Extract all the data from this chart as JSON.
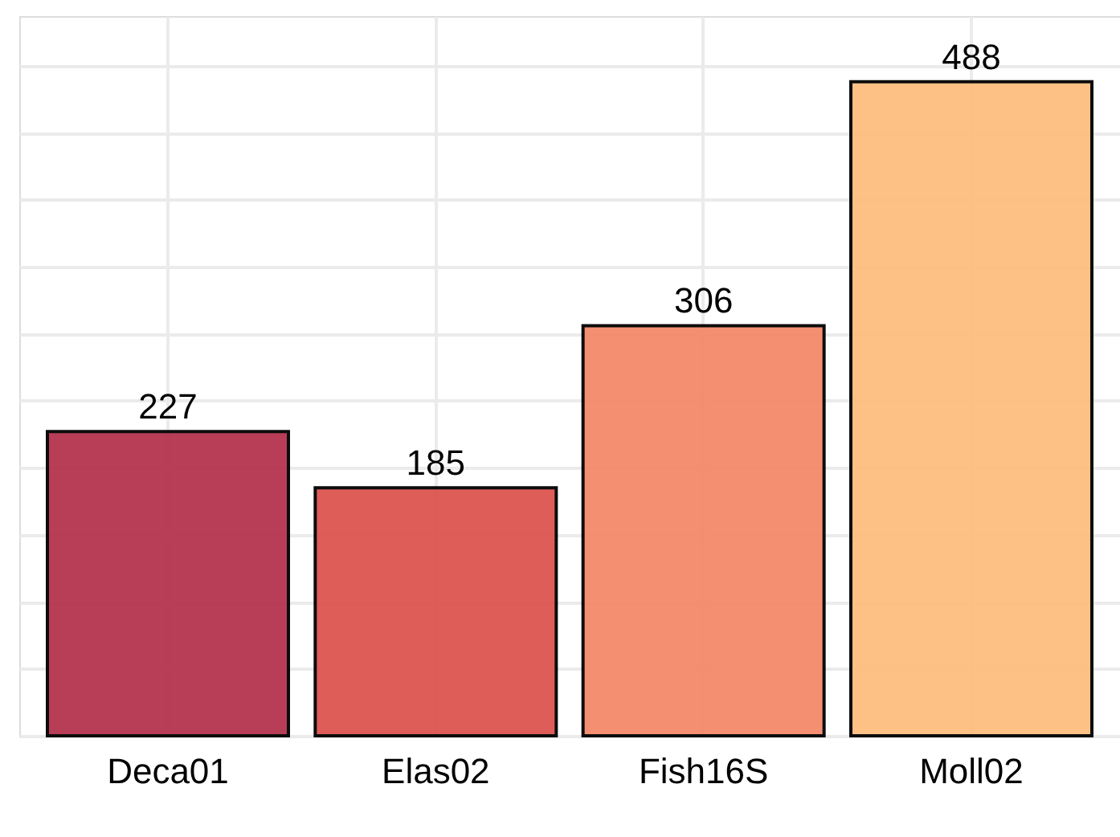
{
  "chart_data": {
    "type": "bar",
    "categories": [
      "Deca01",
      "Elas02",
      "Fish16S",
      "Moll02"
    ],
    "values": [
      227,
      185,
      306,
      488
    ],
    "colors": [
      "#b5334f",
      "#dd5550",
      "#f48a6a",
      "#fdbe7f"
    ],
    "ylim": [
      0,
      537
    ],
    "yticks": [
      {
        "value": 0,
        "label": null
      },
      {
        "value": 50,
        "label": null
      },
      {
        "value": 100,
        "label": null
      },
      {
        "value": 150,
        "label": null
      },
      {
        "value": 200,
        "label": null
      },
      {
        "value": 250,
        "label": null
      },
      {
        "value": 300,
        "label": null
      },
      {
        "value": 350,
        "label": null
      },
      {
        "value": 400,
        "label": null
      },
      {
        "value": 450,
        "label": null
      },
      {
        "value": 500,
        "label": null
      }
    ],
    "tick_labels": "x",
    "grid": true,
    "data_labels": true
  }
}
